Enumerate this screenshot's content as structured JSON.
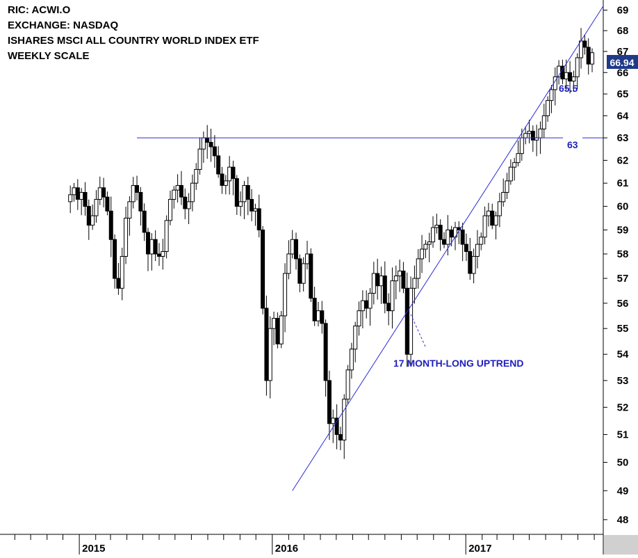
{
  "header": {
    "ric": "RIC: ACWI.O",
    "exchange": "EXCHANGE: NASDAQ",
    "name": "ISHARES MSCI ALL COUNTRY WORLD INDEX ETF",
    "scale": "WEEKLY SCALE"
  },
  "colors": {
    "annotation": "#1f1fbf",
    "line": "#2a2ad4",
    "price_badge": "#1e3a8a",
    "up_body": "#ffffff",
    "down_body": "#000000"
  },
  "chart_data": {
    "type": "candlestick",
    "title": "ISHARES MSCI ALL COUNTRY WORLD INDEX ETF",
    "frequency": "weekly",
    "y_scale": "log",
    "ylim": [
      47.5,
      69.5
    ],
    "y_ticks": [
      48,
      49,
      50,
      51,
      52,
      53,
      54,
      55,
      56,
      57,
      58,
      59,
      60,
      61,
      62,
      63,
      64,
      65,
      66,
      67,
      68,
      69
    ],
    "x_range": [
      "2014-08-04",
      "2017-09-18"
    ],
    "x_year_labels": [
      {
        "date": "2015-01-01",
        "label": "2015"
      },
      {
        "date": "2016-01-01",
        "label": "2016"
      },
      {
        "date": "2017-01-01",
        "label": "2017"
      }
    ],
    "last_price": "66.94",
    "horizontal_levels": [
      {
        "value": 63,
        "label": "63",
        "from": "2015-04-20"
      }
    ],
    "trendline": {
      "label": "17 MONTH-LONG UPTREND",
      "start": {
        "date": "2016-02-08",
        "value": 49.0
      },
      "end": {
        "date": "2017-09-18",
        "value": 69.2
      },
      "point_label": {
        "date": "2017-07-24",
        "text": "65.5"
      }
    },
    "weekly_closes": [
      60.5,
      60.8,
      60.3,
      60.6,
      60.0,
      59.2,
      59.6,
      60.3,
      60.8,
      60.4,
      59.8,
      58.6,
      57.0,
      56.6,
      57.9,
      59.5,
      60.2,
      60.9,
      60.6,
      59.8,
      58.9,
      58.0,
      58.6,
      58.0,
      57.9,
      58.1,
      59.4,
      60.3,
      60.7,
      60.9,
      60.4,
      59.9,
      60.2,
      61.0,
      61.6,
      62.5,
      63.0,
      62.8,
      62.6,
      62.2,
      61.4,
      60.9,
      61.1,
      61.7,
      61.2,
      60.0,
      60.2,
      60.9,
      60.3,
      59.8,
      59.9,
      59.0,
      55.8,
      53.0,
      55.0,
      55.4,
      54.4,
      55.5,
      57.2,
      58.0,
      58.6,
      57.8,
      56.8,
      57.6,
      58.0,
      56.2,
      55.3,
      55.7,
      55.2,
      53.0,
      51.4,
      51.6,
      51.0,
      50.8,
      52.3,
      53.4,
      54.2,
      55.1,
      55.7,
      56.1,
      55.8,
      56.4,
      57.2,
      56.7,
      57.1,
      56.0,
      55.7,
      56.9,
      57.1,
      57.3,
      56.6,
      54.0,
      56.6,
      57.0,
      57.8,
      58.2,
      58.4,
      58.5,
      59.1,
      59.2,
      58.6,
      58.4,
      59.0,
      58.7,
      59.1,
      59.0,
      58.4,
      58.1,
      57.2,
      57.9,
      58.4,
      58.7,
      59.6,
      59.8,
      59.2,
      59.6,
      60.2,
      60.6,
      61.1,
      61.7,
      61.9,
      62.3,
      63.0,
      63.2,
      63.3,
      62.9,
      63.0,
      63.4,
      64.0,
      64.7,
      65.2,
      65.8,
      66.3,
      65.7,
      66.0,
      65.6,
      65.8,
      66.7,
      67.5,
      67.2,
      66.4,
      66.94
    ]
  },
  "annotations": {
    "level_63": "63",
    "trend_point": "65.5",
    "uptrend": "17 MONTH-LONG UPTREND",
    "price_badge": "66.94"
  }
}
